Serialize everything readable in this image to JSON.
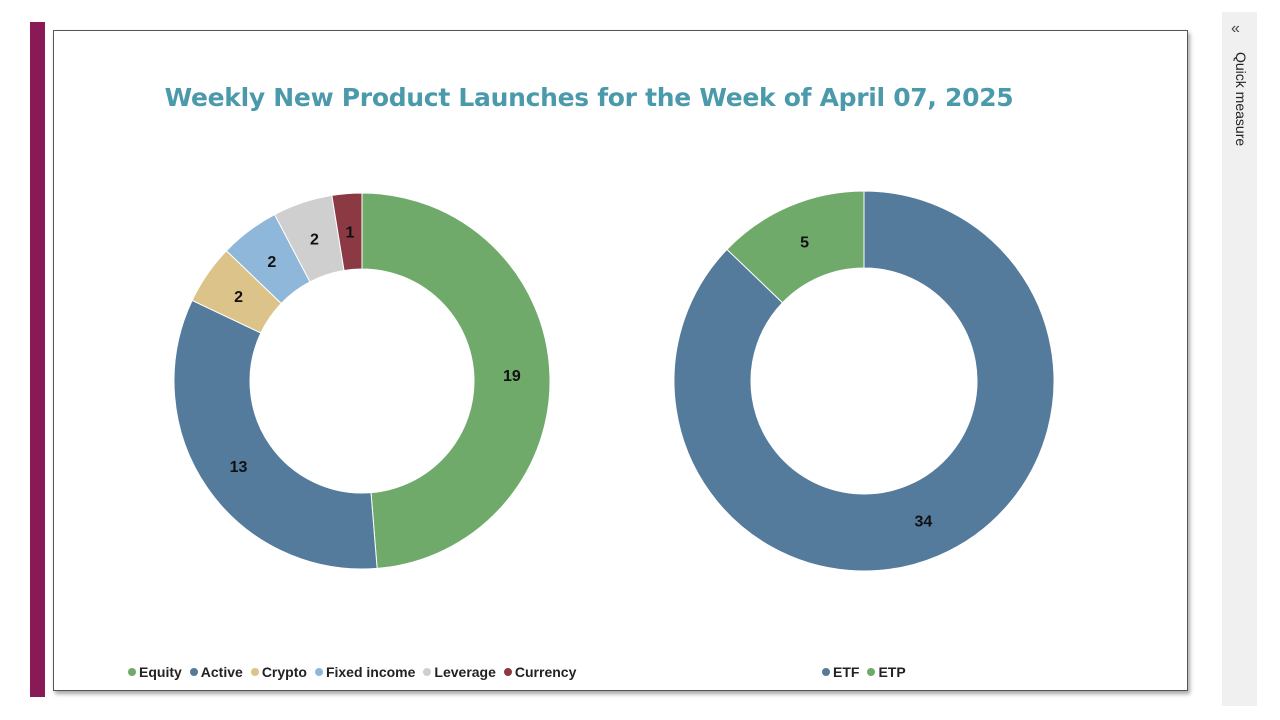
{
  "sidebar": {
    "label": "Quick measure",
    "collapse_icon": "double-chevron-left-icon"
  },
  "chart_data": [
    {
      "type": "donut",
      "title": "Weekly New Product Launches for the Week of April 07, 2025",
      "categories": [
        "Equity",
        "Active",
        "Crypto",
        "Fixed income",
        "Leverage",
        "Currency"
      ],
      "values": [
        19,
        13,
        2,
        2,
        2,
        1
      ],
      "colors": [
        "#6faa6b",
        "#557b9c",
        "#dbc38a",
        "#8fb7da",
        "#cfcfcf",
        "#8b3a44"
      ],
      "legend": "bottom-left"
    },
    {
      "type": "donut",
      "categories": [
        "ETF",
        "ETP"
      ],
      "values": [
        34,
        5
      ],
      "colors": [
        "#557b9c",
        "#6faa6b"
      ],
      "legend": "bottom"
    }
  ]
}
